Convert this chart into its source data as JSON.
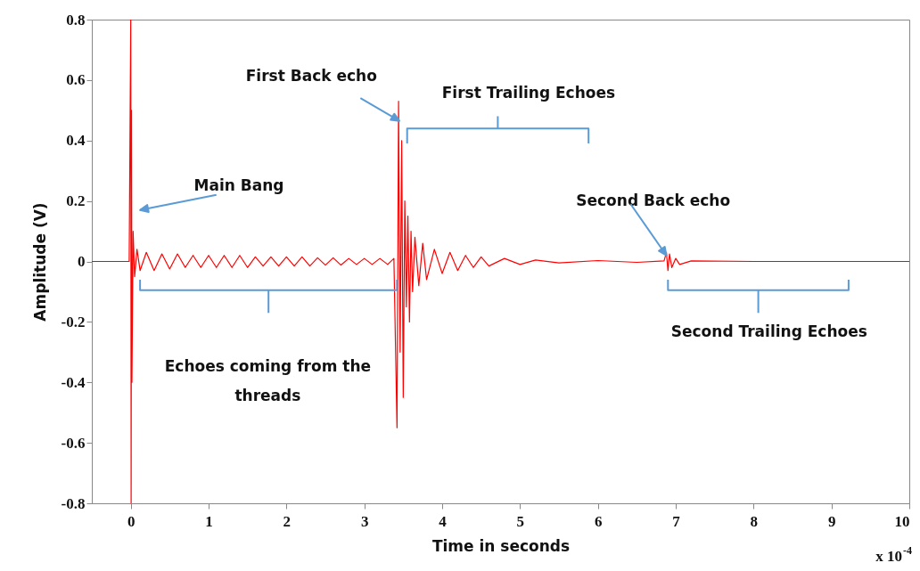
{
  "chart_data": {
    "type": "line",
    "xlabel": "Time in seconds",
    "ylabel": "Amplitude (V)",
    "xlim": [
      -0.5,
      10
    ],
    "xticks": [
      0,
      1,
      2,
      3,
      4,
      5,
      6,
      7,
      8,
      9,
      10
    ],
    "ylim": [
      -0.8,
      0.8
    ],
    "yticks": [
      -0.8,
      -0.6,
      -0.4,
      -0.2,
      0,
      0.2,
      0.4,
      0.6,
      0.8
    ],
    "series": [
      {
        "color": "#ff0000",
        "x": [
          -0.5,
          -0.1,
          -0.02,
          0,
          0.005,
          0.01,
          0.015,
          0.03,
          0.05,
          0.08,
          0.12,
          0.2,
          0.3,
          0.4,
          0.5,
          0.6,
          0.7,
          0.8,
          0.9,
          1.0,
          1.1,
          1.2,
          1.3,
          1.4,
          1.5,
          1.6,
          1.7,
          1.8,
          1.9,
          2.0,
          2.1,
          2.2,
          2.3,
          2.4,
          2.5,
          2.6,
          2.7,
          2.8,
          2.9,
          3.0,
          3.1,
          3.2,
          3.3,
          3.38,
          3.42,
          3.44,
          3.46,
          3.48,
          3.5,
          3.52,
          3.54,
          3.56,
          3.58,
          3.6,
          3.62,
          3.65,
          3.7,
          3.75,
          3.8,
          3.9,
          4.0,
          4.1,
          4.2,
          4.3,
          4.4,
          4.5,
          4.6,
          4.8,
          5.0,
          5.2,
          5.5,
          6.0,
          6.5,
          6.85,
          6.88,
          6.9,
          6.92,
          6.95,
          7.0,
          7.05,
          7.2,
          8,
          9,
          10
        ],
        "values": [
          0,
          0,
          0,
          0.8,
          -0.8,
          0.5,
          -0.4,
          0.1,
          -0.05,
          0.04,
          -0.03,
          0.03,
          -0.03,
          0.025,
          -0.025,
          0.025,
          -0.02,
          0.02,
          -0.02,
          0.02,
          -0.02,
          0.02,
          -0.02,
          0.02,
          -0.02,
          0.015,
          -0.015,
          0.015,
          -0.015,
          0.015,
          -0.015,
          0.015,
          -0.015,
          0.012,
          -0.012,
          0.012,
          -0.012,
          0.01,
          -0.01,
          0.01,
          -0.01,
          0.01,
          -0.01,
          0.01,
          -0.55,
          0.53,
          -0.3,
          0.4,
          -0.45,
          0.2,
          -0.15,
          0.15,
          -0.2,
          0.1,
          -0.1,
          0.08,
          -0.08,
          0.06,
          -0.06,
          0.04,
          -0.04,
          0.03,
          -0.03,
          0.02,
          -0.02,
          0.015,
          -0.015,
          0.01,
          -0.01,
          0.005,
          -0.005,
          0.003,
          -0.003,
          0.002,
          0.03,
          -0.03,
          0.025,
          -0.02,
          0.01,
          -0.01,
          0.002,
          0,
          0,
          0
        ]
      }
    ],
    "annotations": [
      "Main Bang",
      {
        "text": "First Back echo",
        "x": 3.45,
        "y": 0.465
      },
      "First Trailing Echoes",
      {
        "text": "Second Back echo",
        "x": 6.88,
        "y": 0.02
      },
      "Echoes coming from the threads",
      "Second Trailing Echoes",
      "x 10$^{-4}$"
    ]
  }
}
